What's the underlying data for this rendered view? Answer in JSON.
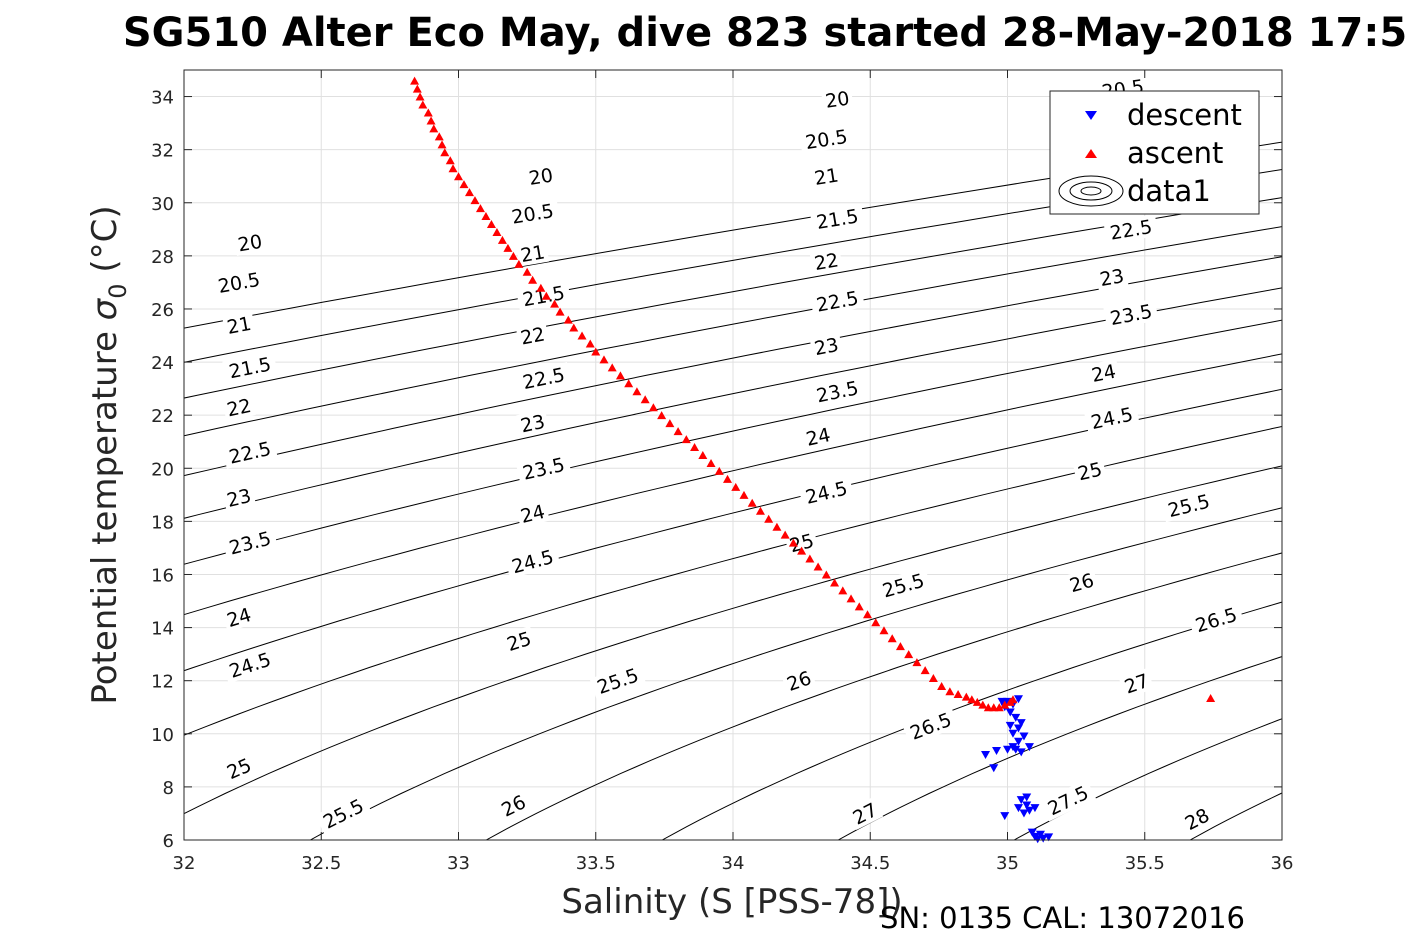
{
  "chart_data": {
    "type": "scatter",
    "title": "SG510 Alter Eco May, dive 823 started 28-May-2018 17:5",
    "xlabel": "Salinity (S [PSS-78])",
    "ylabel_main": "Potential temperature ",
    "ylabel_sigma": "σ",
    "ylabel_sub": "0",
    "ylabel_unit": " (°C)",
    "xlim": [
      32,
      36
    ],
    "ylim": [
      6,
      35
    ],
    "xticks": [
      32,
      32.5,
      33,
      33.5,
      34,
      34.5,
      35,
      35.5,
      36
    ],
    "xtick_labels": [
      "32",
      "32.5",
      "33",
      "33.5",
      "34",
      "34.5",
      "35",
      "35.5",
      "36"
    ],
    "yticks": [
      6,
      8,
      10,
      12,
      14,
      16,
      18,
      20,
      22,
      24,
      26,
      28,
      30,
      32,
      34
    ],
    "ytick_labels": [
      "6",
      "8",
      "10",
      "12",
      "14",
      "16",
      "18",
      "20",
      "22",
      "24",
      "26",
      "28",
      "30",
      "32",
      "34"
    ],
    "grid": true,
    "legend_position": "top-right",
    "legend": [
      "descent",
      "ascent",
      "data1"
    ],
    "contour_levels": [
      20,
      20.5,
      21,
      21.5,
      22,
      22.5,
      23,
      23.5,
      24,
      24.5,
      25,
      25.5,
      26,
      26.5,
      27,
      27.5,
      28
    ],
    "contour_labels": [
      {
        "text": "20",
        "x": 32.24,
        "y": 28.5
      },
      {
        "text": "20",
        "x": 33.3,
        "y": 31.0
      },
      {
        "text": "20",
        "x": 34.38,
        "y": 33.9
      },
      {
        "text": "20.5",
        "x": 32.2,
        "y": 27.0
      },
      {
        "text": "20.5",
        "x": 33.27,
        "y": 29.6
      },
      {
        "text": "20.5",
        "x": 34.34,
        "y": 32.4
      },
      {
        "text": "20.5",
        "x": 35.42,
        "y": 34.3
      },
      {
        "text": "21",
        "x": 32.2,
        "y": 25.4
      },
      {
        "text": "21",
        "x": 33.27,
        "y": 28.1
      },
      {
        "text": "21",
        "x": 34.34,
        "y": 31.0
      },
      {
        "text": "21.5",
        "x": 32.24,
        "y": 23.8
      },
      {
        "text": "21.5",
        "x": 33.31,
        "y": 26.5
      },
      {
        "text": "21.5",
        "x": 34.38,
        "y": 29.4
      },
      {
        "text": "22",
        "x": 32.2,
        "y": 22.3
      },
      {
        "text": "22",
        "x": 33.27,
        "y": 25.0
      },
      {
        "text": "22",
        "x": 34.34,
        "y": 27.8
      },
      {
        "text": "22.5",
        "x": 32.24,
        "y": 20.6
      },
      {
        "text": "22.5",
        "x": 33.31,
        "y": 23.4
      },
      {
        "text": "22.5",
        "x": 34.38,
        "y": 26.3
      },
      {
        "text": "22.5",
        "x": 35.45,
        "y": 29.0
      },
      {
        "text": "23",
        "x": 32.2,
        "y": 18.9
      },
      {
        "text": "23",
        "x": 33.27,
        "y": 21.7
      },
      {
        "text": "23",
        "x": 34.34,
        "y": 24.6
      },
      {
        "text": "23",
        "x": 35.38,
        "y": 27.2
      },
      {
        "text": "23.5",
        "x": 32.24,
        "y": 17.2
      },
      {
        "text": "23.5",
        "x": 33.31,
        "y": 20.0
      },
      {
        "text": "23.5",
        "x": 34.38,
        "y": 22.9
      },
      {
        "text": "23.5",
        "x": 35.45,
        "y": 25.8
      },
      {
        "text": "24",
        "x": 32.2,
        "y": 14.4
      },
      {
        "text": "24",
        "x": 33.27,
        "y": 18.3
      },
      {
        "text": "24",
        "x": 34.31,
        "y": 21.2
      },
      {
        "text": "24",
        "x": 35.35,
        "y": 23.6
      },
      {
        "text": "24.5",
        "x": 32.24,
        "y": 12.6
      },
      {
        "text": "24.5",
        "x": 33.27,
        "y": 16.5
      },
      {
        "text": "24.5",
        "x": 34.34,
        "y": 19.1
      },
      {
        "text": "24.5",
        "x": 35.38,
        "y": 21.9
      },
      {
        "text": "25",
        "x": 32.2,
        "y": 8.7
      },
      {
        "text": "25",
        "x": 33.22,
        "y": 13.5
      },
      {
        "text": "25",
        "x": 34.25,
        "y": 17.2
      },
      {
        "text": "25",
        "x": 35.3,
        "y": 19.9
      },
      {
        "text": "25.5",
        "x": 32.58,
        "y": 7.0
      },
      {
        "text": "25.5",
        "x": 33.58,
        "y": 12.0
      },
      {
        "text": "25.5",
        "x": 34.62,
        "y": 15.6
      },
      {
        "text": "25.5",
        "x": 35.66,
        "y": 18.6
      },
      {
        "text": "26",
        "x": 33.2,
        "y": 7.3
      },
      {
        "text": "26",
        "x": 34.24,
        "y": 12.0
      },
      {
        "text": "26",
        "x": 35.27,
        "y": 15.7
      },
      {
        "text": "26.5",
        "x": 34.72,
        "y": 10.3
      },
      {
        "text": "26.5",
        "x": 35.76,
        "y": 14.3
      },
      {
        "text": "27",
        "x": 34.48,
        "y": 7.0
      },
      {
        "text": "27",
        "x": 35.47,
        "y": 11.9
      },
      {
        "text": "27.5",
        "x": 35.22,
        "y": 7.5
      },
      {
        "text": "28",
        "x": 35.69,
        "y": 6.8
      }
    ],
    "series": [
      {
        "name": "descent",
        "color": "#0000ff",
        "marker": "triangle-down",
        "x": [
          35.13,
          35.1,
          35.12,
          35.09,
          35.15,
          35.11,
          35.06,
          35.08,
          35.1,
          35.07,
          35.05,
          35.07,
          35.04,
          34.99,
          35.02,
          35.04,
          35.06,
          35.08,
          35.05,
          35.03,
          35.0,
          34.96,
          34.92,
          34.95,
          35.02,
          35.04,
          35.05,
          35.03,
          35.01,
          34.99,
          35.0,
          35.02,
          35.04,
          34.98,
          35.01
        ],
        "y": [
          6.05,
          6.12,
          6.2,
          6.28,
          6.1,
          6.03,
          7.0,
          7.1,
          7.2,
          7.3,
          7.5,
          7.6,
          7.2,
          6.9,
          9.5,
          9.7,
          9.9,
          9.5,
          9.3,
          9.4,
          9.4,
          9.35,
          9.2,
          8.7,
          10.0,
          10.2,
          10.4,
          10.6,
          10.8,
          11.0,
          11.2,
          11.1,
          11.3,
          11.2,
          10.3
        ]
      },
      {
        "name": "ascent",
        "color": "#ff0000",
        "marker": "triangle-up",
        "x": [
          32.84,
          32.85,
          32.86,
          32.87,
          32.89,
          32.9,
          32.91,
          32.93,
          32.94,
          32.95,
          32.97,
          32.98,
          33.0,
          33.02,
          33.04,
          33.06,
          33.08,
          33.1,
          33.12,
          33.14,
          33.16,
          33.18,
          33.2,
          33.22,
          33.25,
          33.27,
          33.3,
          33.32,
          33.35,
          33.37,
          33.4,
          33.42,
          33.45,
          33.48,
          33.5,
          33.53,
          33.56,
          33.59,
          33.62,
          33.65,
          33.68,
          33.71,
          33.74,
          33.77,
          33.8,
          33.83,
          33.86,
          33.89,
          33.92,
          33.95,
          33.98,
          34.01,
          34.04,
          34.07,
          34.1,
          34.13,
          34.16,
          34.19,
          34.22,
          34.25,
          34.28,
          34.31,
          34.34,
          34.37,
          34.4,
          34.43,
          34.46,
          34.49,
          34.52,
          34.55,
          34.58,
          34.61,
          34.64,
          34.67,
          34.7,
          34.73,
          34.76,
          34.79,
          34.82,
          34.85,
          34.87,
          34.89,
          34.91,
          34.93,
          34.95,
          34.97,
          34.99,
          35.01,
          35.02,
          35.74
        ],
        "y": [
          34.6,
          34.3,
          34.0,
          33.7,
          33.4,
          33.1,
          32.8,
          32.5,
          32.2,
          31.9,
          31.6,
          31.3,
          31.0,
          30.7,
          30.4,
          30.1,
          29.8,
          29.5,
          29.2,
          28.9,
          28.6,
          28.3,
          28.0,
          27.7,
          27.4,
          27.1,
          26.8,
          26.5,
          26.2,
          25.9,
          25.6,
          25.3,
          25.0,
          24.7,
          24.4,
          24.1,
          23.8,
          23.5,
          23.2,
          22.9,
          22.6,
          22.3,
          22.0,
          21.7,
          21.4,
          21.1,
          20.8,
          20.5,
          20.2,
          19.9,
          19.6,
          19.3,
          19.0,
          18.7,
          18.4,
          18.1,
          17.8,
          17.5,
          17.2,
          16.9,
          16.6,
          16.3,
          16.0,
          15.7,
          15.4,
          15.1,
          14.8,
          14.5,
          14.2,
          13.9,
          13.6,
          13.3,
          13.0,
          12.7,
          12.4,
          12.1,
          11.8,
          11.6,
          11.5,
          11.4,
          11.3,
          11.2,
          11.1,
          11.0,
          11.0,
          11.0,
          11.1,
          11.2,
          11.3,
          11.35
        ]
      }
    ]
  },
  "footer": {
    "sn_text": "SN: 0135  CAL: 13072016"
  },
  "colors": {
    "descent": "#0000ff",
    "ascent": "#ff0000",
    "grid": "#e0e0e0",
    "axis": "#262626"
  }
}
